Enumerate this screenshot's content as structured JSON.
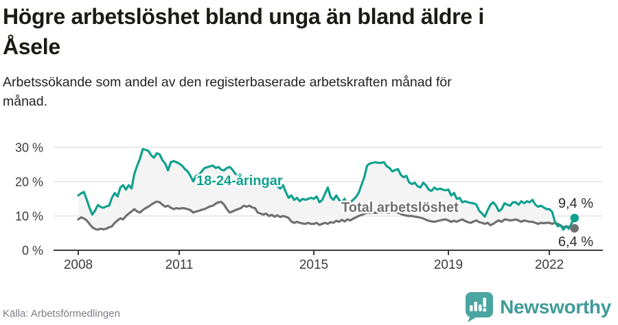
{
  "header": {
    "title_lines": [
      "Högre arbetslöshet bland unga än bland äldre i",
      "Åsele"
    ],
    "subtitle_lines": [
      "Arbetssökande som andel av den registerbaserade arbetskraften månad för",
      "månad."
    ]
  },
  "footer": {
    "source": "Källa: Arbetsförmedlingen",
    "brand": "Newsworthy"
  },
  "colors": {
    "youth_line": "#10a08f",
    "total_line": "#6f6f6f",
    "area_fill": "#f4f4f4",
    "grid_line": "#dedede",
    "axis_line": "#3a3a3a",
    "logo_teal": "#4ba5a1",
    "brand_text_teal": "#3f9b97"
  },
  "chart_data": {
    "type": "line",
    "unit": "%",
    "frequency": "monthly",
    "x_start": "2008-01",
    "x_end": "2022-10",
    "ylim": [
      0,
      33
    ],
    "grid": true,
    "legend_position": "inline-labels",
    "x_ticks": [
      {
        "year": 2008,
        "label": "2008"
      },
      {
        "year": 2011,
        "label": "2011"
      },
      {
        "year": 2015,
        "label": "2015"
      },
      {
        "year": 2019,
        "label": "2019"
      },
      {
        "year": 2022,
        "label": "2022"
      }
    ],
    "y_ticks": [
      {
        "value": 30,
        "label": "30 %"
      },
      {
        "value": 20,
        "label": "20 %"
      },
      {
        "value": 10,
        "label": "10 %"
      },
      {
        "value": 0,
        "label": "0 %"
      }
    ],
    "series": [
      {
        "name": "18-24-åringar",
        "color": "#10a08f",
        "end_label": "9,4 %",
        "end_value": 9.4,
        "values": [
          16.0,
          16.6,
          17.0,
          14.8,
          12.4,
          10.4,
          11.6,
          13.2,
          12.6,
          12.4,
          12.8,
          13.0,
          15.3,
          16.7,
          15.7,
          18.3,
          19.0,
          17.7,
          19.0,
          18.0,
          22.3,
          24.7,
          26.7,
          29.5,
          29.3,
          29.0,
          27.7,
          27.0,
          28.3,
          28.0,
          26.3,
          25.3,
          23.3,
          25.7,
          26.0,
          25.7,
          25.3,
          24.7,
          23.7,
          23.0,
          21.7,
          20.1,
          21.7,
          22.0,
          23.0,
          24.0,
          24.2,
          24.5,
          24.7,
          24.0,
          24.3,
          23.5,
          23.3,
          24.0,
          24.3,
          23.5,
          22.3,
          21.8,
          21.5,
          21.3,
          21.3,
          21.5,
          21.7,
          21.3,
          21.0,
          20.8,
          20.7,
          19.5,
          18.7,
          19.0,
          19.3,
          18.7,
          18.0,
          19.0,
          17.0,
          15.3,
          16.0,
          14.7,
          15.3,
          14.3,
          15.0,
          14.7,
          15.0,
          15.3,
          15.0,
          15.7,
          14.0,
          14.7,
          16.5,
          18.3,
          15.5,
          14.7,
          16.0,
          14.7,
          14.0,
          15.0,
          13.0,
          14.0,
          14.7,
          15.5,
          16.7,
          19.0,
          21.3,
          24.7,
          25.3,
          25.5,
          25.7,
          25.5,
          25.5,
          25.7,
          24.5,
          24.0,
          23.0,
          23.4,
          23.7,
          22.0,
          21.3,
          21.7,
          19.8,
          19.3,
          19.7,
          18.7,
          18.3,
          19.7,
          19.0,
          17.7,
          17.3,
          18.3,
          17.7,
          18.0,
          17.7,
          17.5,
          17.7,
          16.0,
          16.7,
          15.0,
          15.3,
          14.0,
          14.3,
          14.0,
          13.8,
          13.7,
          13.3,
          11.5,
          10.7,
          9.8,
          11.7,
          13.3,
          14.0,
          13.0,
          11.4,
          12.0,
          13.7,
          13.3,
          13.0,
          14.0,
          14.0,
          13.3,
          14.3,
          13.7,
          14.3,
          14.0,
          14.7,
          13.3,
          12.7,
          13.0,
          12.5,
          12.0,
          12.0,
          11.2,
          8.3,
          7.0,
          7.3,
          6.0,
          7.0,
          6.3,
          8.0,
          9.4
        ]
      },
      {
        "name": "Total arbetslöshet",
        "color": "#6f6f6f",
        "end_label": "6,4 %",
        "end_value": 6.4,
        "values": [
          9.0,
          9.6,
          9.3,
          8.7,
          7.7,
          6.7,
          6.2,
          6.0,
          6.3,
          6.1,
          6.3,
          6.7,
          7.0,
          8.0,
          8.7,
          9.3,
          9.0,
          10.0,
          10.7,
          11.3,
          12.0,
          11.3,
          11.0,
          11.7,
          12.3,
          12.7,
          13.3,
          13.8,
          14.2,
          14.0,
          13.3,
          12.7,
          13.0,
          12.4,
          12.0,
          12.3,
          12.1,
          12.3,
          12.2,
          12.0,
          11.7,
          11.0,
          11.3,
          11.5,
          11.8,
          12.0,
          12.4,
          12.8,
          13.0,
          13.6,
          14.0,
          14.1,
          13.3,
          12.0,
          11.0,
          11.3,
          11.7,
          12.0,
          12.3,
          13.0,
          12.7,
          13.0,
          12.5,
          12.3,
          11.0,
          10.7,
          10.4,
          10.7,
          10.0,
          10.3,
          9.8,
          10.2,
          9.7,
          10.0,
          9.8,
          9.4,
          8.4,
          8.0,
          8.3,
          8.0,
          7.8,
          7.7,
          8.0,
          7.7,
          7.7,
          8.0,
          7.4,
          7.7,
          8.0,
          7.7,
          8.2,
          8.0,
          8.6,
          8.3,
          8.9,
          8.4,
          9.0,
          8.7,
          9.2,
          9.6,
          10.0,
          10.3,
          10.6,
          11.0,
          10.8,
          11.0,
          10.9,
          11.0,
          11.0,
          11.1,
          10.9,
          11.0,
          11.0,
          11.0,
          11.0,
          10.6,
          10.3,
          10.1,
          10.0,
          10.0,
          9.8,
          9.7,
          9.5,
          9.3,
          8.9,
          8.6,
          8.4,
          8.3,
          8.5,
          8.7,
          8.9,
          9.0,
          8.7,
          8.3,
          8.6,
          8.3,
          8.7,
          9.0,
          8.5,
          8.2,
          8.0,
          8.4,
          8.7,
          8.2,
          8.0,
          7.7,
          8.0,
          7.3,
          7.7,
          8.3,
          8.7,
          8.3,
          9.0,
          8.9,
          8.7,
          8.8,
          9.0,
          8.7,
          8.3,
          8.7,
          8.5,
          8.3,
          8.3,
          8.0,
          7.7,
          8.0,
          7.9,
          8.0,
          8.0,
          7.7,
          8.0,
          7.7,
          7.3,
          6.7,
          7.0,
          6.8,
          6.7,
          6.4
        ]
      }
    ]
  }
}
